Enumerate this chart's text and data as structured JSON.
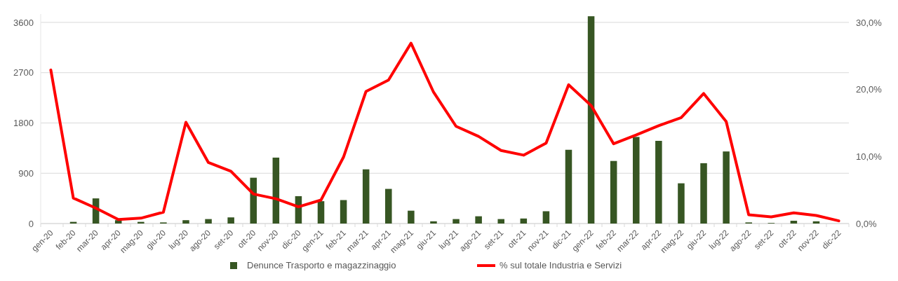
{
  "chart_data": {
    "type": "bar",
    "categories": [
      "gen-20",
      "feb-20",
      "mar-20",
      "apr-20",
      "mag-20",
      "giu-20",
      "lug-20",
      "ago-20",
      "set-20",
      "ott-20",
      "nov-20",
      "dic-20",
      "gen-21",
      "feb-21",
      "mar-21",
      "apr-21",
      "mag-21",
      "giu-21",
      "lug-21",
      "ago-21",
      "set-21",
      "ott-21",
      "nov-21",
      "dic-21",
      "gen-22",
      "feb-22",
      "mar-22",
      "apr-22",
      "mag-22",
      "giu-22",
      "lug-22",
      "ago-22",
      "set-22",
      "ott-22",
      "nov-22",
      "dic-22"
    ],
    "series": [
      {
        "name": "Denunce Trasporto e magazzinaggio",
        "color": "#375623",
        "values": [
          0,
          30,
          450,
          60,
          30,
          20,
          60,
          80,
          110,
          820,
          1180,
          490,
          400,
          420,
          970,
          620,
          230,
          40,
          80,
          130,
          80,
          90,
          220,
          1320,
          3710,
          1120,
          1550,
          1480,
          720,
          1080,
          1290,
          20,
          10,
          50,
          40,
          0
        ]
      },
      {
        "name": "% sul totale Industria e Servizi",
        "type": "line",
        "axis": "y2",
        "color": "#ff0000",
        "values": [
          22.9,
          3.8,
          2.3,
          0.6,
          0.8,
          1.7,
          15.1,
          9.1,
          7.8,
          4.4,
          3.7,
          2.5,
          3.5,
          9.9,
          19.7,
          21.4,
          26.9,
          19.6,
          14.5,
          13.0,
          10.9,
          10.2,
          12.0,
          20.7,
          17.6,
          11.9,
          13.2,
          14.6,
          15.8,
          19.4,
          15.2,
          1.3,
          1.0,
          1.6,
          1.2,
          0.4
        ]
      }
    ],
    "ylim": [
      0,
      3750
    ],
    "yticks": [
      0,
      900,
      1800,
      2700,
      3600
    ],
    "y2lim": [
      0,
      31.25
    ],
    "y2ticks": [
      {
        "value": 0,
        "label": "0,0%"
      },
      {
        "value": 10,
        "label": "10,0%"
      },
      {
        "value": 20,
        "label": "20,0%"
      },
      {
        "value": 30,
        "label": "30,0%"
      }
    ],
    "grid": "y",
    "legend": "bottom",
    "marker": "none",
    "line_style": "solid"
  }
}
